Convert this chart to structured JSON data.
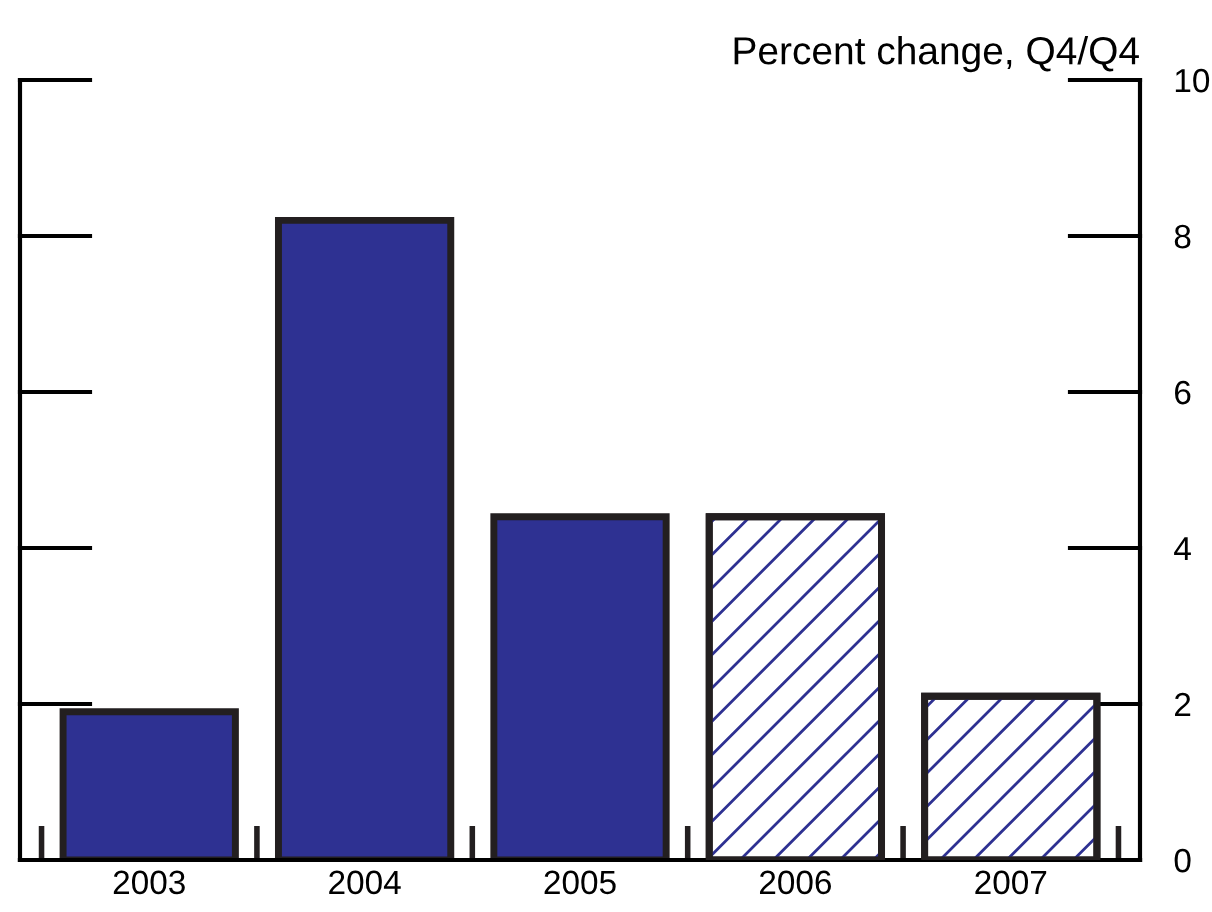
{
  "chart_data": {
    "type": "bar",
    "title": "Percent change, Q4/Q4",
    "categories": [
      "2003",
      "2004",
      "2005",
      "2006",
      "2007"
    ],
    "values": [
      1.9,
      8.2,
      4.4,
      4.4,
      2.1
    ],
    "colors": [
      "#2e3192",
      "#2e3192",
      "#2e3192",
      "#ffffff",
      "#ffffff"
    ],
    "ylim": [
      0,
      10
    ],
    "yticks": [
      0,
      2,
      4,
      6,
      8,
      10
    ],
    "grid": false,
    "legend": false
  }
}
